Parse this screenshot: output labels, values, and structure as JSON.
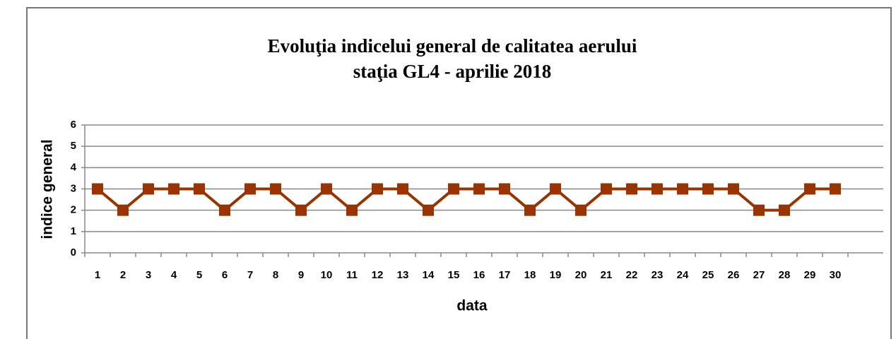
{
  "chart_data": {
    "type": "line",
    "title": "Evoluţia indicelui general de calitatea aerului",
    "subtitle": "staţia GL4 - aprilie 2018",
    "x_label": "data",
    "y_label": "indice general",
    "categories": [
      "1",
      "2",
      "3",
      "4",
      "5",
      "6",
      "7",
      "8",
      "9",
      "10",
      "11",
      "12",
      "13",
      "14",
      "15",
      "16",
      "17",
      "18",
      "19",
      "20",
      "21",
      "22",
      "23",
      "24",
      "25",
      "26",
      "27",
      "28",
      "29",
      "30"
    ],
    "series": [
      {
        "color": "#993300",
        "values": [
          3,
          2,
          3,
          3,
          3,
          2,
          3,
          3,
          2,
          3,
          2,
          3,
          3,
          2,
          3,
          3,
          3,
          2,
          3,
          2,
          3,
          3,
          3,
          3,
          3,
          3,
          2,
          2,
          3,
          3
        ]
      }
    ],
    "ylim": [
      0,
      6
    ],
    "yticks": [
      0,
      1,
      2,
      3,
      4,
      5,
      6
    ],
    "grid": true
  }
}
